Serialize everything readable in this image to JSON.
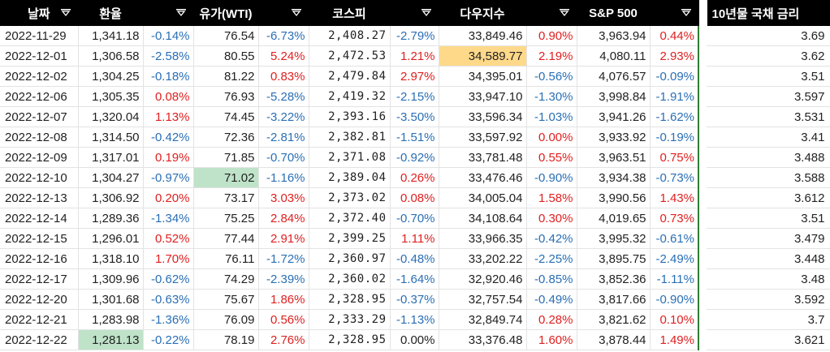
{
  "headers": {
    "date": "날짜",
    "fx": "환율",
    "oil": "유가(WTI)",
    "kospi": "코스피",
    "dow": "다우지수",
    "sp500": "S&P 500",
    "bond": "10년물 국채 금리"
  },
  "colors": {
    "up": "#e02020",
    "down": "#2a6fb5",
    "highlight_green": "#bfe3c9",
    "highlight_yellow": "#ffd98a"
  },
  "rows": [
    {
      "date": "2022-11-29",
      "fx": "1,341.18",
      "fx_chg": "-0.14%",
      "oil": "76.54",
      "oil_chg": "-6.73%",
      "kospi": "2,408.27",
      "kospi_chg": "-2.79%",
      "dow": "33,849.46",
      "dow_chg": "0.90%",
      "sp": "3,963.94",
      "sp_chg": "0.44%",
      "bond": "3.69"
    },
    {
      "date": "2022-12-01",
      "fx": "1,306.58",
      "fx_chg": "-2.58%",
      "oil": "80.55",
      "oil_chg": "5.24%",
      "kospi": "2,472.53",
      "kospi_chg": "1.21%",
      "dow": "34,589.77",
      "dow_chg": "2.19%",
      "sp": "4,080.11",
      "sp_chg": "2.93%",
      "bond": "3.62"
    },
    {
      "date": "2022-12-02",
      "fx": "1,304.25",
      "fx_chg": "-0.18%",
      "oil": "81.22",
      "oil_chg": "0.83%",
      "kospi": "2,479.84",
      "kospi_chg": "2.97%",
      "dow": "34,395.01",
      "dow_chg": "-0.56%",
      "sp": "4,076.57",
      "sp_chg": "-0.09%",
      "bond": "3.51"
    },
    {
      "date": "2022-12-06",
      "fx": "1,305.35",
      "fx_chg": "0.08%",
      "oil": "76.93",
      "oil_chg": "-5.28%",
      "kospi": "2,419.32",
      "kospi_chg": "-2.15%",
      "dow": "33,947.10",
      "dow_chg": "-1.30%",
      "sp": "3,998.84",
      "sp_chg": "-1.91%",
      "bond": "3.597"
    },
    {
      "date": "2022-12-07",
      "fx": "1,320.04",
      "fx_chg": "1.13%",
      "oil": "74.45",
      "oil_chg": "-3.22%",
      "kospi": "2,393.16",
      "kospi_chg": "-3.50%",
      "dow": "33,596.34",
      "dow_chg": "-1.03%",
      "sp": "3,941.26",
      "sp_chg": "-1.62%",
      "bond": "3.531"
    },
    {
      "date": "2022-12-08",
      "fx": "1,314.50",
      "fx_chg": "-0.42%",
      "oil": "72.36",
      "oil_chg": "-2.81%",
      "kospi": "2,382.81",
      "kospi_chg": "-1.51%",
      "dow": "33,597.92",
      "dow_chg": "0.00%",
      "sp": "3,933.92",
      "sp_chg": "-0.19%",
      "bond": "3.41"
    },
    {
      "date": "2022-12-09",
      "fx": "1,317.01",
      "fx_chg": "0.19%",
      "oil": "71.85",
      "oil_chg": "-0.70%",
      "kospi": "2,371.08",
      "kospi_chg": "-0.92%",
      "dow": "33,781.48",
      "dow_chg": "0.55%",
      "sp": "3,963.51",
      "sp_chg": "0.75%",
      "bond": "3.488"
    },
    {
      "date": "2022-12-10",
      "fx": "1,304.27",
      "fx_chg": "-0.97%",
      "oil": "71.02",
      "oil_chg": "-1.16%",
      "kospi": "2,389.04",
      "kospi_chg": "0.26%",
      "dow": "33,476.46",
      "dow_chg": "-0.90%",
      "sp": "3,934.38",
      "sp_chg": "-0.73%",
      "bond": "3.588"
    },
    {
      "date": "2022-12-13",
      "fx": "1,306.92",
      "fx_chg": "0.20%",
      "oil": "73.17",
      "oil_chg": "3.03%",
      "kospi": "2,373.02",
      "kospi_chg": "0.08%",
      "dow": "34,005.04",
      "dow_chg": "1.58%",
      "sp": "3,990.56",
      "sp_chg": "1.43%",
      "bond": "3.612"
    },
    {
      "date": "2022-12-14",
      "fx": "1,289.36",
      "fx_chg": "-1.34%",
      "oil": "75.25",
      "oil_chg": "2.84%",
      "kospi": "2,372.40",
      "kospi_chg": "-0.70%",
      "dow": "34,108.64",
      "dow_chg": "0.30%",
      "sp": "4,019.65",
      "sp_chg": "0.73%",
      "bond": "3.51"
    },
    {
      "date": "2022-12-15",
      "fx": "1,296.01",
      "fx_chg": "0.52%",
      "oil": "77.44",
      "oil_chg": "2.91%",
      "kospi": "2,399.25",
      "kospi_chg": "1.11%",
      "dow": "33,966.35",
      "dow_chg": "-0.42%",
      "sp": "3,995.32",
      "sp_chg": "-0.61%",
      "bond": "3.479"
    },
    {
      "date": "2022-12-16",
      "fx": "1,318.10",
      "fx_chg": "1.70%",
      "oil": "76.11",
      "oil_chg": "-1.72%",
      "kospi": "2,360.97",
      "kospi_chg": "-0.48%",
      "dow": "33,202.22",
      "dow_chg": "-2.25%",
      "sp": "3,895.75",
      "sp_chg": "-2.49%",
      "bond": "3.448"
    },
    {
      "date": "2022-12-17",
      "fx": "1,309.96",
      "fx_chg": "-0.62%",
      "oil": "74.29",
      "oil_chg": "-2.39%",
      "kospi": "2,360.02",
      "kospi_chg": "-1.64%",
      "dow": "32,920.46",
      "dow_chg": "-0.85%",
      "sp": "3,852.36",
      "sp_chg": "-1.11%",
      "bond": "3.48"
    },
    {
      "date": "2022-12-20",
      "fx": "1,301.68",
      "fx_chg": "-0.63%",
      "oil": "75.67",
      "oil_chg": "1.86%",
      "kospi": "2,328.95",
      "kospi_chg": "-0.37%",
      "dow": "32,757.54",
      "dow_chg": "-0.49%",
      "sp": "3,817.66",
      "sp_chg": "-0.90%",
      "bond": "3.592"
    },
    {
      "date": "2022-12-21",
      "fx": "1,283.98",
      "fx_chg": "-1.36%",
      "oil": "76.09",
      "oil_chg": "0.56%",
      "kospi": "2,333.29",
      "kospi_chg": "-1.13%",
      "dow": "32,849.74",
      "dow_chg": "0.28%",
      "sp": "3,821.62",
      "sp_chg": "0.10%",
      "bond": "3.7"
    },
    {
      "date": "2022-12-22",
      "fx": "1,281.13",
      "fx_chg": "-0.22%",
      "oil": "78.19",
      "oil_chg": "2.76%",
      "kospi": "2,328.95",
      "kospi_chg": "0.00%",
      "dow": "33,376.48",
      "dow_chg": "1.60%",
      "sp": "3,878.44",
      "sp_chg": "1.49%",
      "bond": "3.621"
    }
  ],
  "highlights": [
    {
      "row": 1,
      "col": "dow",
      "color": "yellow"
    },
    {
      "row": 7,
      "col": "oil",
      "color": "green"
    },
    {
      "row": 15,
      "col": "fx",
      "color": "green"
    }
  ],
  "icons": {
    "filter": "filter-dropdown-icon"
  }
}
